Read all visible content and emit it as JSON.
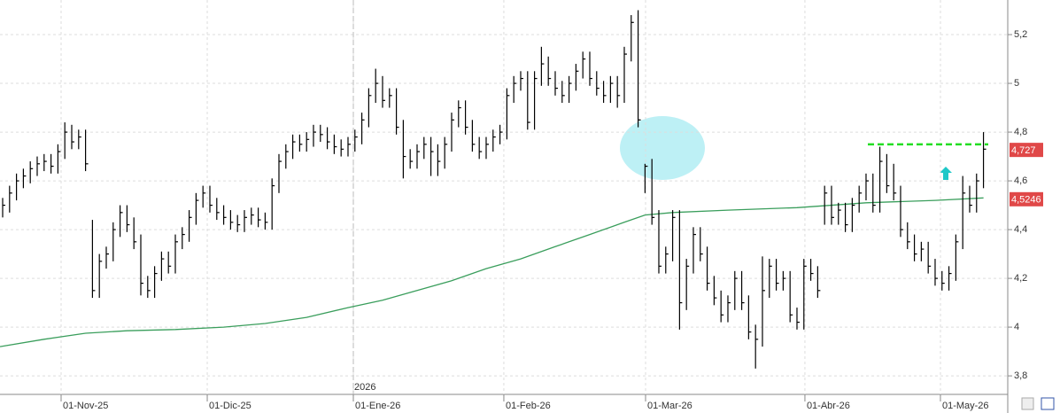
{
  "chart_data": {
    "type": "ohlc",
    "color": "#000000",
    "high": [
      4.53,
      4.58,
      4.63,
      4.65,
      4.68,
      4.7,
      4.71,
      4.71,
      4.75,
      4.84,
      4.83,
      4.81,
      4.81,
      4.44,
      4.3,
      4.33,
      4.43,
      4.5,
      4.5,
      4.45,
      4.38,
      4.21,
      4.25,
      4.31,
      4.31,
      4.38,
      4.41,
      4.48,
      4.55,
      4.58,
      4.58,
      4.53,
      4.5,
      4.48,
      4.46,
      4.48,
      4.49,
      4.49,
      4.47,
      4.61,
      4.71,
      4.75,
      4.79,
      4.79,
      4.8,
      4.83,
      4.83,
      4.82,
      4.79,
      4.77,
      4.78,
      4.81,
      4.88,
      4.98,
      5.06,
      5.03,
      4.98,
      4.98,
      4.85,
      4.73,
      4.75,
      4.78,
      4.78,
      4.75,
      4.78,
      4.88,
      4.93,
      4.93,
      4.85,
      4.78,
      4.78,
      4.81,
      4.83,
      4.98,
      5.03,
      5.05,
      5.05,
      5.05,
      5.15,
      5.11,
      5.05,
      5.01,
      5.03,
      5.08,
      5.13,
      5.13,
      5.05,
      5.01,
      5.03,
      5.03,
      5.15,
      5.28,
      5.3,
      4.67,
      4.69,
      4.48,
      4.33,
      4.48,
      4.48,
      4.28,
      4.41,
      4.41,
      4.33,
      4.21,
      4.15,
      4.13,
      4.23,
      4.23,
      4.13,
      4.01,
      4.29,
      4.28,
      4.28,
      4.23,
      4.23,
      4.08,
      4.28,
      4.28,
      4.25,
      4.58,
      4.58,
      4.51,
      4.51,
      4.53,
      4.58,
      4.63,
      4.63,
      4.74,
      4.71,
      4.67,
      4.58,
      4.43,
      4.38,
      4.35,
      4.35,
      4.28,
      4.23,
      4.25,
      4.38,
      4.62,
      4.58,
      4.63,
      4.8
    ],
    "low": [
      4.45,
      4.47,
      4.52,
      4.57,
      4.59,
      4.62,
      4.64,
      4.63,
      4.63,
      4.69,
      4.73,
      4.73,
      4.64,
      4.12,
      4.12,
      4.24,
      4.27,
      4.37,
      4.39,
      4.32,
      4.13,
      4.12,
      4.12,
      4.19,
      4.22,
      4.22,
      4.32,
      4.35,
      4.42,
      4.49,
      4.47,
      4.44,
      4.42,
      4.4,
      4.39,
      4.39,
      4.42,
      4.41,
      4.4,
      4.4,
      4.55,
      4.65,
      4.69,
      4.72,
      4.72,
      4.74,
      4.76,
      4.73,
      4.71,
      4.7,
      4.7,
      4.72,
      4.75,
      4.82,
      4.92,
      4.9,
      4.9,
      4.79,
      4.61,
      4.65,
      4.65,
      4.69,
      4.62,
      4.62,
      4.65,
      4.72,
      4.82,
      4.79,
      4.72,
      4.69,
      4.69,
      4.72,
      4.75,
      4.77,
      4.92,
      4.97,
      4.81,
      4.81,
      4.99,
      4.99,
      4.95,
      4.92,
      4.92,
      4.97,
      5.02,
      4.99,
      4.95,
      4.92,
      4.92,
      4.9,
      4.92,
      5.09,
      4.82,
      4.55,
      4.42,
      4.22,
      4.22,
      4.27,
      3.99,
      4.07,
      4.22,
      4.27,
      4.15,
      4.09,
      4.02,
      4.02,
      4.07,
      4.07,
      3.95,
      3.83,
      3.92,
      4.12,
      4.15,
      4.15,
      4.02,
      3.99,
      3.99,
      4.19,
      4.12,
      4.42,
      4.42,
      4.42,
      4.39,
      4.39,
      4.47,
      4.52,
      4.47,
      4.47,
      4.55,
      4.52,
      4.37,
      4.32,
      4.27,
      4.27,
      4.22,
      4.17,
      4.15,
      4.15,
      4.19,
      4.32,
      4.47,
      4.47,
      4.57
    ],
    "close": [
      4.5,
      4.55,
      4.6,
      4.62,
      4.65,
      4.67,
      4.68,
      4.66,
      4.72,
      4.8,
      4.76,
      4.78,
      4.67,
      4.15,
      4.27,
      4.3,
      4.4,
      4.47,
      4.42,
      4.35,
      4.18,
      4.15,
      4.22,
      4.28,
      4.25,
      4.35,
      4.38,
      4.45,
      4.52,
      4.55,
      4.5,
      4.47,
      4.45,
      4.43,
      4.42,
      4.45,
      4.46,
      4.44,
      4.43,
      4.58,
      4.68,
      4.72,
      4.76,
      4.75,
      4.77,
      4.8,
      4.79,
      4.76,
      4.74,
      4.73,
      4.75,
      4.78,
      4.85,
      4.95,
      5.0,
      4.93,
      4.95,
      4.82,
      4.7,
      4.68,
      4.72,
      4.75,
      4.72,
      4.68,
      4.75,
      4.85,
      4.9,
      4.82,
      4.75,
      4.72,
      4.75,
      4.78,
      4.8,
      4.95,
      5.0,
      5.02,
      4.84,
      5.02,
      5.08,
      5.02,
      4.98,
      4.95,
      5.0,
      5.05,
      5.1,
      5.02,
      4.98,
      4.95,
      5.0,
      4.95,
      5.12,
      5.25,
      4.85,
      4.66,
      4.45,
      4.25,
      4.3,
      4.45,
      4.1,
      4.25,
      4.38,
      4.3,
      4.18,
      4.12,
      4.05,
      4.1,
      4.2,
      4.1,
      3.98,
      3.95,
      4.15,
      4.25,
      4.18,
      4.2,
      4.05,
      4.02,
      4.25,
      4.22,
      4.15,
      4.55,
      4.45,
      4.48,
      4.42,
      4.5,
      4.55,
      4.6,
      4.5,
      4.68,
      4.58,
      4.55,
      4.4,
      4.35,
      4.3,
      4.32,
      4.25,
      4.2,
      4.18,
      4.22,
      4.35,
      4.55,
      4.5,
      4.6,
      4.73
    ],
    "moving_average": {
      "color": "#3a9e5c",
      "x": [
        -0.385,
        6,
        12,
        18,
        25,
        32,
        38,
        44,
        50,
        55,
        60,
        65,
        70,
        75,
        80,
        85,
        90,
        93,
        97,
        105,
        115,
        125,
        135,
        142
      ],
      "values": [
        3.92,
        3.95,
        3.975,
        3.985,
        3.99,
        4.0,
        4.015,
        4.04,
        4.08,
        4.11,
        4.15,
        4.19,
        4.24,
        4.28,
        4.33,
        4.38,
        4.43,
        4.46,
        4.47,
        4.48,
        4.49,
        4.51,
        4.52,
        4.53
      ]
    },
    "level": {
      "value": 4.75,
      "color": "#22dd22"
    },
    "last_price": {
      "value": 4.727,
      "label": "4,727"
    },
    "ma_price": {
      "value": 4.5246,
      "label": "4,5246"
    },
    "ylim": [
      3.724,
      5.342
    ],
    "yticks": [
      {
        "value": 3.8,
        "label": "3,8"
      },
      4,
      {
        "value": 4.2,
        "label": "4,2"
      },
      {
        "value": 4.4,
        "label": "4,4"
      },
      {
        "value": 4.6,
        "label": "4,6"
      },
      {
        "value": 4.8,
        "label": "4,8"
      },
      5,
      {
        "value": 5.2,
        "label": "5,2"
      }
    ],
    "xlim": [
      -0.385,
      145.26
    ],
    "xticks": [
      {
        "value": 8.46,
        "label": "01-Nov-25"
      },
      {
        "value": 29.62,
        "label": "01-Dic-25"
      },
      {
        "value": 50.77,
        "label": "01-Ene-26"
      },
      {
        "value": 72.56,
        "label": "01-Feb-26"
      },
      {
        "value": 93.08,
        "label": "01-Mar-26"
      },
      {
        "value": 116.15,
        "label": "01-Abr-26"
      },
      {
        "value": 135.77,
        "label": "01-May-26"
      }
    ],
    "year_marker": {
      "value": 50.77,
      "label": "2026"
    },
    "grid": true
  }
}
